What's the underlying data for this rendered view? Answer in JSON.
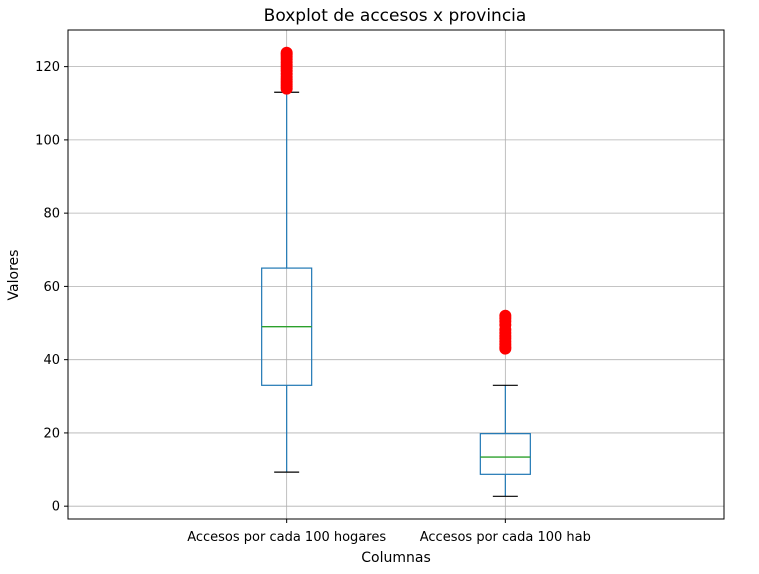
{
  "chart_data": {
    "type": "boxplot",
    "title": "Boxplot de accesos x provincia",
    "xlabel": "Columnas",
    "ylabel": "Valores",
    "ylim": [
      -3.5,
      130
    ],
    "yticks": [
      0,
      20,
      40,
      60,
      80,
      100,
      120
    ],
    "grid": true,
    "categories": [
      "Accesos por cada 100 hogares",
      "Accesos por cada 100 hab"
    ],
    "boxes": [
      {
        "category": "Accesos por cada 100 hogares",
        "whisker_low": 9.3,
        "q1": 33,
        "median": 49,
        "q3": 65,
        "whisker_high": 113,
        "outliers": [
          114,
          114.6,
          115.2,
          115.8,
          116.5,
          117.2,
          118,
          118.8,
          119.6,
          120.4,
          121.2,
          122,
          122.7,
          123.3,
          123.8
        ]
      },
      {
        "category": "Accesos por cada 100 hab",
        "whisker_low": 2.7,
        "q1": 8.7,
        "median": 13.4,
        "q3": 19.8,
        "whisker_high": 33,
        "outliers": [
          43,
          43.5,
          44.2,
          45,
          45.8,
          46.5,
          47.3,
          48.2,
          49.5,
          50.5,
          51.3,
          52
        ]
      }
    ],
    "colors": {
      "box": "#1f77b4",
      "median": "#2ca02c",
      "cap": "#000000",
      "outlier": "#ff0000",
      "grid": "#b0b0b0"
    }
  }
}
